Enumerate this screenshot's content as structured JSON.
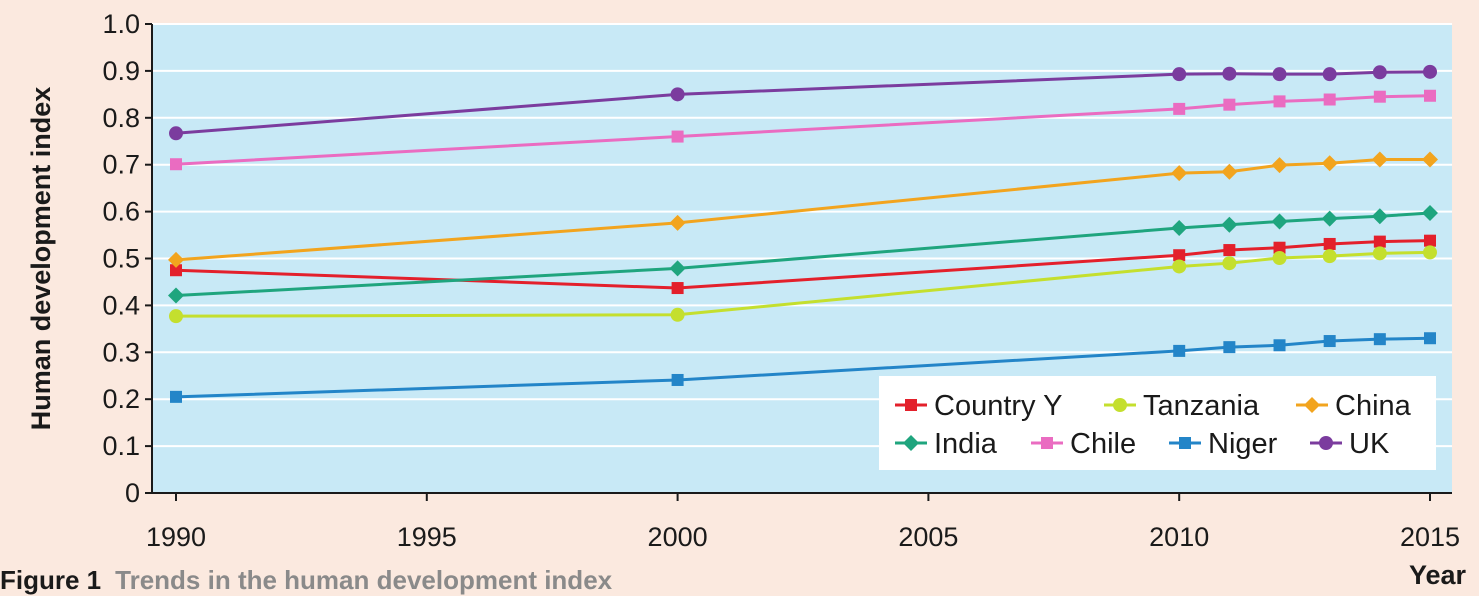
{
  "colors": {
    "page_background": "#fbe9df",
    "plot_background": "#c8e9f6",
    "gridline": "#ffffff",
    "axis": "#1a1a1a"
  },
  "caption": {
    "number": "Figure 1",
    "title": "Trends in the human development index"
  },
  "chart_data": {
    "type": "line",
    "title": "",
    "xlabel": "Year",
    "ylabel": "Human development index",
    "xlim": [
      1990,
      2015
    ],
    "ylim": [
      0,
      1.0
    ],
    "x_ticks": [
      1990,
      1995,
      2000,
      2005,
      2010,
      2015
    ],
    "y_ticks": [
      0,
      0.1,
      0.2,
      0.3,
      0.4,
      0.5,
      0.6,
      0.7,
      0.8,
      0.9,
      1.0
    ],
    "y_tick_labels": [
      "0",
      "0.1",
      "0.2",
      "0.3",
      "0.4",
      "0.5",
      "0.6",
      "0.7",
      "0.8",
      "0.9",
      "1.0"
    ],
    "grid": "horizontal",
    "legend_position": "bottom-right",
    "x": [
      1990,
      2000,
      2010,
      2011,
      2012,
      2013,
      2014,
      2015
    ],
    "series": [
      {
        "name": "Country Y",
        "color": "#e3202b",
        "marker": "square",
        "values": [
          0.475,
          0.437,
          0.507,
          0.518,
          0.523,
          0.531,
          0.536,
          0.538
        ]
      },
      {
        "name": "Tanzania",
        "color": "#c4df2e",
        "marker": "circle",
        "values": [
          0.377,
          0.38,
          0.483,
          0.49,
          0.501,
          0.505,
          0.511,
          0.513
        ]
      },
      {
        "name": "China",
        "color": "#f2a41e",
        "marker": "diamond",
        "values": [
          0.497,
          0.576,
          0.682,
          0.685,
          0.699,
          0.703,
          0.711,
          0.711
        ]
      },
      {
        "name": "India",
        "color": "#1fa57e",
        "marker": "diamond",
        "values": [
          0.421,
          0.479,
          0.565,
          0.572,
          0.579,
          0.585,
          0.59,
          0.597
        ]
      },
      {
        "name": "Chile",
        "color": "#ea6cc1",
        "marker": "square",
        "values": [
          0.701,
          0.76,
          0.819,
          0.828,
          0.835,
          0.839,
          0.845,
          0.847
        ]
      },
      {
        "name": "Niger",
        "color": "#2385c8",
        "marker": "square",
        "values": [
          0.205,
          0.241,
          0.303,
          0.311,
          0.315,
          0.324,
          0.328,
          0.33
        ]
      },
      {
        "name": "UK",
        "color": "#7b3c9e",
        "marker": "circle",
        "values": [
          0.767,
          0.85,
          0.893,
          0.894,
          0.893,
          0.893,
          0.897,
          0.898
        ]
      }
    ]
  }
}
